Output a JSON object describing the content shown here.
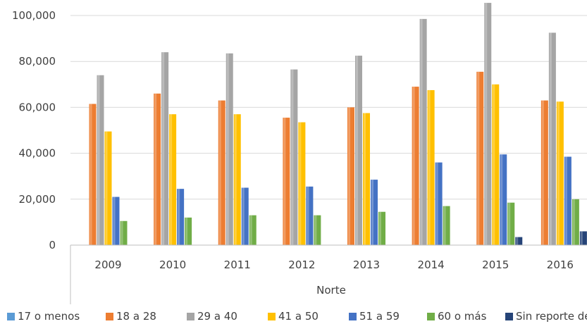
{
  "chart_data": {
    "type": "bar",
    "title": "",
    "xlabel": "Norte",
    "ylabel": "",
    "ylim": [
      0,
      100000
    ],
    "yticks": [
      "0",
      "20,000",
      "40,000",
      "60,000",
      "80,000",
      "100,000"
    ],
    "ytick_values": [
      0,
      20000,
      40000,
      60000,
      80000,
      100000
    ],
    "grid": true,
    "legend_position": "bottom",
    "categories": [
      "2009",
      "2010",
      "2011",
      "2012",
      "2013",
      "2014",
      "2015",
      "2016"
    ],
    "series": [
      {
        "name": "17 o menos",
        "color": "#5b9bd5",
        "values": [
          100,
          100,
          100,
          100,
          100,
          100,
          100,
          100
        ]
      },
      {
        "name": "18 a 28",
        "color": "#ed7d31",
        "values": [
          61500,
          66000,
          63000,
          55500,
          60000,
          69000,
          75500,
          63000
        ]
      },
      {
        "name": "29 a 40",
        "color": "#a5a5a5",
        "values": [
          74000,
          84000,
          83500,
          76500,
          82500,
          98500,
          105500,
          92500
        ]
      },
      {
        "name": "41 a 50",
        "color": "#ffc000",
        "values": [
          49500,
          57000,
          57000,
          53500,
          57500,
          67500,
          70000,
          62500
        ]
      },
      {
        "name": "51 a 59",
        "color": "#4472c4",
        "values": [
          21000,
          24500,
          25000,
          25500,
          28500,
          36000,
          39500,
          38500
        ]
      },
      {
        "name": "60 o más",
        "color": "#70ad47",
        "values": [
          10500,
          12000,
          13000,
          13000,
          14500,
          17000,
          18500,
          20000
        ]
      },
      {
        "name": "Sin reporte de edad",
        "color": "#264478",
        "values": [
          0,
          0,
          0,
          0,
          0,
          0,
          3500,
          6000
        ]
      }
    ]
  }
}
